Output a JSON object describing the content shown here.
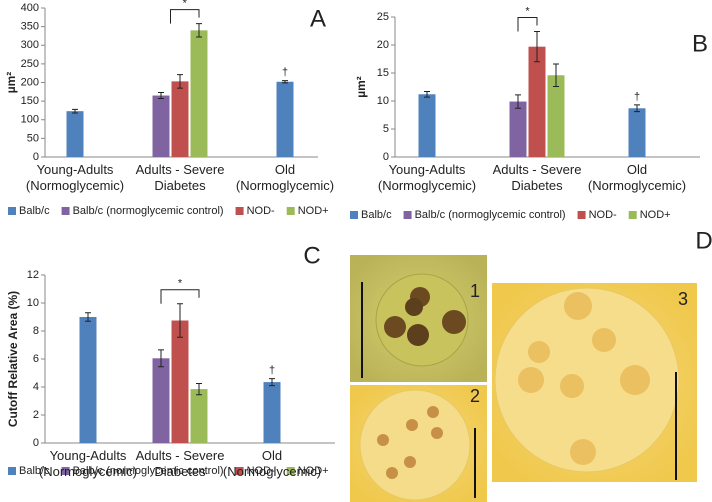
{
  "chart_data": [
    {
      "type": "bar",
      "panel": "A",
      "y_label": "µm²",
      "categories": [
        "Young-Adults\n(Normoglycemic)",
        "Adults - Severe\nDiabetes",
        "Old\n(Normoglycemic)"
      ],
      "series": [
        {
          "name": "Balb/c",
          "color": "#4f81bd",
          "values": [
            123,
            null,
            202
          ],
          "errors": [
            5,
            null,
            3
          ]
        },
        {
          "name": "Balb/c (normoglycemic control)",
          "color": "#8064a2",
          "values": [
            null,
            165,
            null
          ],
          "errors": [
            null,
            8,
            null
          ]
        },
        {
          "name": "NOD-",
          "color": "#c0504d",
          "values": [
            null,
            203,
            null
          ],
          "errors": [
            null,
            18,
            null
          ]
        },
        {
          "name": "NOD+",
          "color": "#9bbb59",
          "values": [
            null,
            340,
            null
          ],
          "errors": [
            null,
            18,
            null
          ]
        }
      ],
      "ylim": [
        0,
        400
      ],
      "yticks": [
        0,
        50,
        100,
        150,
        200,
        250,
        300,
        350,
        400
      ],
      "annotations": [
        "*",
        "†"
      ]
    },
    {
      "type": "bar",
      "panel": "B",
      "y_label": "µm²",
      "categories": [
        "Young-Adults\n(Normoglycemic)",
        "Adults - Severe\nDiabetes",
        "Old\n(Normoglycemic)"
      ],
      "series": [
        {
          "name": "Balb/c",
          "color": "#4f81bd",
          "values": [
            11.2,
            null,
            8.7
          ],
          "errors": [
            0.5,
            null,
            0.6
          ]
        },
        {
          "name": "Balb/c (normoglycemic control)",
          "color": "#8064a2",
          "values": [
            null,
            9.9,
            null
          ],
          "errors": [
            null,
            1.2,
            null
          ]
        },
        {
          "name": "NOD-",
          "color": "#c0504d",
          "values": [
            null,
            19.7,
            null
          ],
          "errors": [
            null,
            2.7,
            null
          ]
        },
        {
          "name": "NOD+",
          "color": "#9bbb59",
          "values": [
            null,
            14.6,
            null
          ],
          "errors": [
            null,
            2.0,
            null
          ]
        }
      ],
      "ylim": [
        0,
        25
      ],
      "yticks": [
        0,
        5,
        10,
        15,
        20,
        25
      ],
      "annotations": [
        "*",
        "†"
      ]
    },
    {
      "type": "bar",
      "panel": "C",
      "y_label": "Cutoff Relative Area (%)",
      "categories": [
        "Young-Adults\n(Normoglycemic)",
        "Adults - Severe\nDiabetes",
        "Old\n(Normoglycemic)"
      ],
      "series": [
        {
          "name": "Balb/c",
          "color": "#4f81bd",
          "values": [
            9.0,
            null,
            4.35
          ],
          "errors": [
            0.3,
            null,
            0.25
          ]
        },
        {
          "name": "Balb/c (normoglycemic control)",
          "color": "#8064a2",
          "values": [
            null,
            6.05,
            null
          ],
          "errors": [
            null,
            0.6,
            null
          ]
        },
        {
          "name": "NOD-",
          "color": "#c0504d",
          "values": [
            null,
            8.75,
            null
          ],
          "errors": [
            null,
            1.2,
            null
          ]
        },
        {
          "name": "NOD+",
          "color": "#9bbb59",
          "values": [
            null,
            3.85,
            null
          ],
          "errors": [
            null,
            0.4,
            null
          ]
        }
      ],
      "ylim": [
        0,
        12
      ],
      "yticks": [
        0,
        2,
        4,
        6,
        8,
        10,
        12
      ],
      "annotations": [
        "*",
        "†"
      ]
    }
  ],
  "panel_d": {
    "label": "D",
    "images": [
      "1",
      "2",
      "3"
    ]
  }
}
